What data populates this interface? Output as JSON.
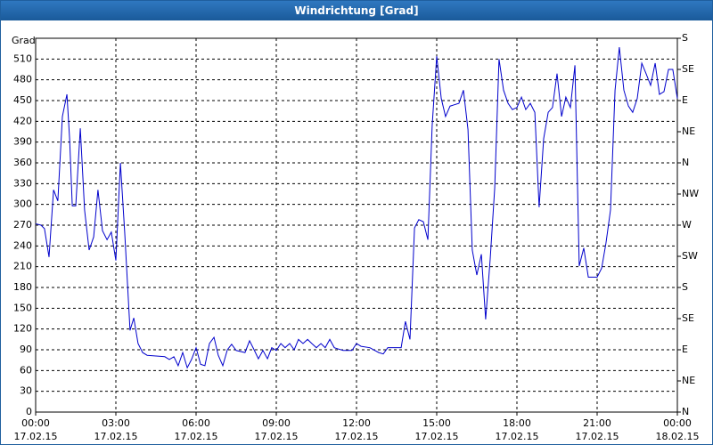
{
  "chart_data": {
    "type": "line",
    "title": "Windrichtung [Grad]",
    "y_label": "Grad",
    "color": "#0000cc",
    "grid": true,
    "xlim": [
      0,
      24
    ],
    "xticks": [
      {
        "value": 0,
        "label": "00:00"
      },
      {
        "value": 3,
        "label": "03:00"
      },
      {
        "value": 6,
        "label": "06:00"
      },
      {
        "value": 9,
        "label": "09:00"
      },
      {
        "value": 12,
        "label": "12:00"
      },
      {
        "value": 15,
        "label": "15:00"
      },
      {
        "value": 18,
        "label": "18:00"
      },
      {
        "value": 21,
        "label": "21:00"
      },
      {
        "value": 24,
        "label": "00:00"
      }
    ],
    "xtick_dates": [
      "17.02.15",
      "17.02.15",
      "17.02.15",
      "17.02.15",
      "17.02.15",
      "17.02.15",
      "17.02.15",
      "17.02.15",
      "18.02.15"
    ],
    "ylim": [
      0,
      540
    ],
    "yticks": [
      0,
      30,
      60,
      90,
      120,
      150,
      180,
      210,
      240,
      270,
      300,
      330,
      360,
      390,
      420,
      450,
      480,
      510
    ],
    "y2lim": [
      0,
      540
    ],
    "y2ticks": [
      {
        "value": 0,
        "label": "N"
      },
      {
        "value": 45,
        "label": "NE"
      },
      {
        "value": 90,
        "label": "E"
      },
      {
        "value": 135,
        "label": "SE"
      },
      {
        "value": 180,
        "label": "S"
      },
      {
        "value": 225,
        "label": "SW"
      },
      {
        "value": 270,
        "label": "W"
      },
      {
        "value": 315,
        "label": "NW"
      },
      {
        "value": 360,
        "label": "N"
      },
      {
        "value": 405,
        "label": "NE"
      },
      {
        "value": 450,
        "label": "E"
      },
      {
        "value": 495,
        "label": "SE"
      },
      {
        "value": 540,
        "label": "S"
      }
    ],
    "x": [
      0,
      0.2,
      0.33,
      0.5,
      0.67,
      0.83,
      1,
      1.17,
      1.27,
      1.37,
      1.5,
      1.67,
      1.83,
      2,
      2.17,
      2.33,
      2.5,
      2.67,
      2.83,
      3,
      3.17,
      3.33,
      3.53,
      3.67,
      3.83,
      4,
      4.17,
      4.5,
      4.83,
      5,
      5.17,
      5.33,
      5.5,
      5.67,
      5.83,
      6,
      6.17,
      6.33,
      6.5,
      6.67,
      6.83,
      7,
      7.17,
      7.33,
      7.5,
      7.83,
      8,
      8.17,
      8.33,
      8.5,
      8.67,
      8.83,
      9,
      9.17,
      9.33,
      9.5,
      9.67,
      9.83,
      10,
      10.17,
      10.33,
      10.5,
      10.67,
      10.83,
      11,
      11.17,
      11.5,
      11.83,
      12,
      12.17,
      12.5,
      12.83,
      13,
      13.17,
      13.5,
      13.67,
      13.83,
      14,
      14.17,
      14.33,
      14.5,
      14.67,
      14.83,
      15,
      15.17,
      15.33,
      15.5,
      15.83,
      16,
      16.17,
      16.33,
      16.5,
      16.67,
      16.83,
      17,
      17.17,
      17.33,
      17.5,
      17.67,
      17.83,
      18,
      18.17,
      18.33,
      18.5,
      18.67,
      18.83,
      19,
      19.17,
      19.33,
      19.5,
      19.67,
      19.83,
      20,
      20.17,
      20.33,
      20.5,
      20.67,
      21,
      21.17,
      21.33,
      21.5,
      21.67,
      21.83,
      22,
      22.17,
      22.33,
      22.5,
      22.67,
      22.83,
      23,
      23.17,
      23.33,
      23.5,
      23.67,
      23.83,
      24
    ],
    "values": [
      272,
      270,
      265,
      224,
      321,
      305,
      427,
      459,
      395,
      298,
      298,
      410,
      292,
      234,
      253,
      321,
      262,
      249,
      260,
      219,
      360,
      260,
      118,
      136,
      99,
      86,
      82,
      81,
      80,
      76,
      80,
      67,
      86,
      64,
      76,
      93,
      69,
      67,
      99,
      108,
      82,
      67,
      90,
      98,
      89,
      86,
      103,
      90,
      77,
      89,
      77,
      93,
      89,
      99,
      93,
      99,
      90,
      105,
      99,
      105,
      99,
      93,
      99,
      93,
      105,
      93,
      89,
      89,
      99,
      95,
      93,
      86,
      84,
      93,
      93,
      93,
      131,
      105,
      266,
      278,
      275,
      249,
      414,
      514,
      453,
      427,
      442,
      446,
      465,
      408,
      234,
      198,
      228,
      134,
      221,
      324,
      510,
      465,
      446,
      437,
      440,
      455,
      437,
      446,
      433,
      296,
      395,
      433,
      440,
      489,
      427,
      455,
      440,
      501,
      211,
      237,
      195,
      195,
      208,
      244,
      292,
      465,
      527,
      465,
      442,
      433,
      453,
      504,
      489,
      472,
      504,
      459,
      463,
      495,
      495,
      453
    ]
  }
}
